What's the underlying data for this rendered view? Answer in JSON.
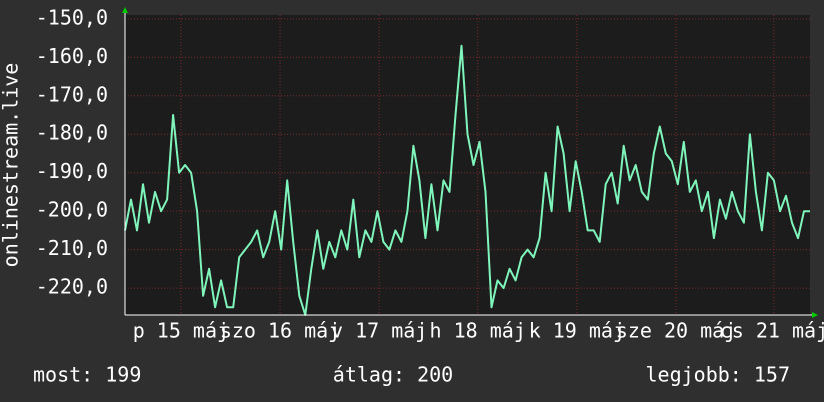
{
  "chart_data": {
    "type": "line",
    "ylabel": "onlinestream.live",
    "series": [
      {
        "color": "#7ff5bb",
        "values": [
          -205,
          -197,
          -205,
          -193,
          -203,
          -195,
          -200,
          -197,
          -175,
          -190,
          -188,
          -190,
          -200,
          -222,
          -215,
          -225,
          -218,
          -225,
          -225,
          -212,
          -210,
          -208,
          -205,
          -212,
          -208,
          -200,
          -210,
          -192,
          -208,
          -222,
          -227,
          -215,
          -205,
          -215,
          -208,
          -212,
          -205,
          -210,
          -197,
          -212,
          -205,
          -208,
          -200,
          -208,
          -210,
          -205,
          -208,
          -200,
          -183,
          -192,
          -207,
          -193,
          -205,
          -192,
          -195,
          -175,
          -157,
          -180,
          -188,
          -182,
          -195,
          -225,
          -218,
          -220,
          -215,
          -218,
          -212,
          -210,
          -212,
          -207,
          -190,
          -200,
          -178,
          -185,
          -200,
          -187,
          -195,
          -205,
          -205,
          -208,
          -193,
          -190,
          -198,
          -183,
          -192,
          -188,
          -195,
          -197,
          -185,
          -178,
          -185,
          -187,
          -193,
          -182,
          -195,
          -192,
          -200,
          -195,
          -207,
          -197,
          -202,
          -195,
          -200,
          -203,
          -180,
          -195,
          -205,
          -190,
          -192,
          -200,
          -196,
          -203,
          -207,
          -200,
          -200
        ]
      }
    ],
    "xlim": [
      0,
      114
    ],
    "xticks": [
      {
        "value": 9.3,
        "label": "p 15 máj"
      },
      {
        "value": 25.8,
        "label": "szo 16 máj"
      },
      {
        "value": 42.3,
        "label": "v 17 máj"
      },
      {
        "value": 58.7,
        "label": "h 18 máj"
      },
      {
        "value": 75.2,
        "label": "k 19 máj"
      },
      {
        "value": 91.7,
        "label": "sze 20 máj"
      },
      {
        "value": 108,
        "label": "cs 21 máj"
      }
    ],
    "ylim": [
      -227,
      -149
    ],
    "yticks": [
      {
        "value": -150,
        "label": "-150,0"
      },
      {
        "value": -160,
        "label": "-160,0"
      },
      {
        "value": -170,
        "label": "-170,0"
      },
      {
        "value": -180,
        "label": "-180,0"
      },
      {
        "value": -190,
        "label": "-190,0"
      },
      {
        "value": -200,
        "label": "-200,0"
      },
      {
        "value": -210,
        "label": "-210,0"
      },
      {
        "value": -220,
        "label": "-220,0"
      }
    ],
    "grid": true,
    "stats": [
      "most: 199",
      "átlag: 200",
      "legjobb: 157"
    ]
  }
}
